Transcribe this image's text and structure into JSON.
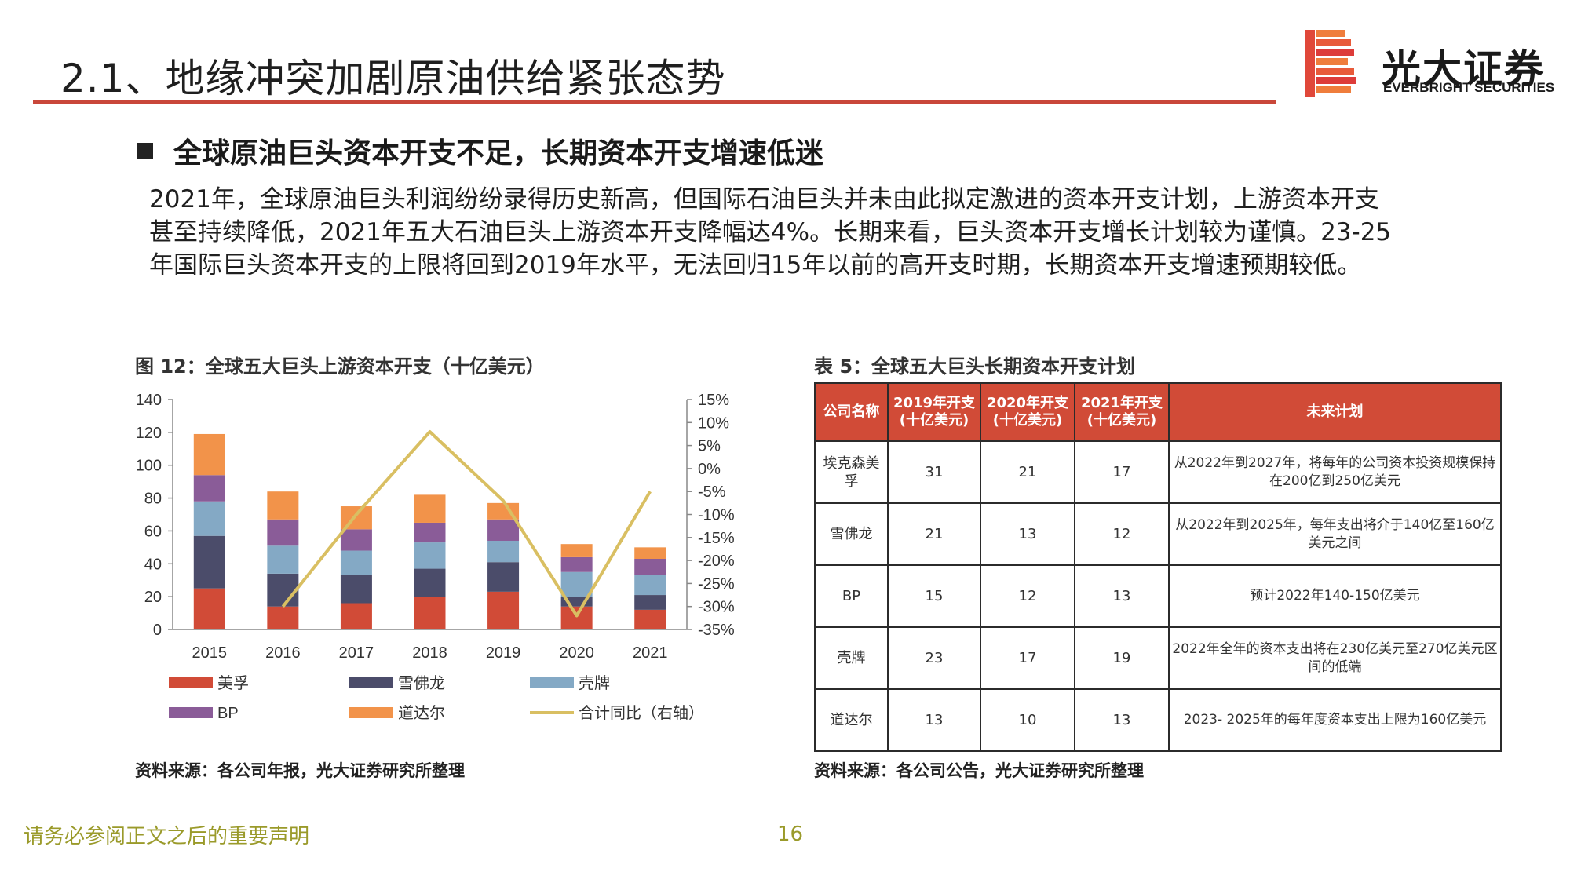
{
  "header": {
    "title": "2.1、地缘冲突加剧原油供给紧张态势",
    "logo_cn": "光大证券",
    "logo_en": "EVERBRIGHT SECURITIES"
  },
  "bullet": "全球原油巨头资本开支不足，长期资本开支增速低迷",
  "paragraph_lines": [
    "2021年，全球原油巨头利润纷纷录得历史新高，但国际石油巨头并未由此拟定激进的资本开支计划，上游资本开支",
    "甚至持续降低，2021年五大石油巨头上游资本开支降幅达4%。长期来看，巨头资本开支增长计划较为谨慎。23-25",
    "年国际巨头资本开支的上限将回到2019年水平，无法回归15年以前的高开支时期，长期资本开支增速预期较低。"
  ],
  "figure": {
    "title": "图 12：全球五大巨头上游资本开支（十亿美元）",
    "source": "资料来源：各公司年报，光大证券研究所整理"
  },
  "chart_data": {
    "type": "bar",
    "stacked": true,
    "categories": [
      "2015",
      "2016",
      "2017",
      "2018",
      "2019",
      "2020",
      "2021"
    ],
    "series": [
      {
        "name": "美孚",
        "color": "#d14b37",
        "values": [
          25,
          14,
          16,
          20,
          23,
          14,
          12
        ]
      },
      {
        "name": "雪佛龙",
        "color": "#4b4c6a",
        "values": [
          32,
          20,
          17,
          17,
          18,
          6,
          9
        ]
      },
      {
        "name": "壳牌",
        "color": "#84a9c5",
        "values": [
          21,
          17,
          15,
          16,
          13,
          15,
          12
        ]
      },
      {
        "name": "BP",
        "color": "#8a5c98",
        "values": [
          16,
          16,
          13,
          12,
          13,
          9,
          10
        ]
      },
      {
        "name": "道达尔",
        "color": "#f2934a",
        "values": [
          25,
          17,
          14,
          17,
          10,
          8,
          7
        ]
      }
    ],
    "line_series": {
      "name": "合计同比（右轴）",
      "color": "#d9bf62",
      "axis": "right",
      "values": [
        null,
        -30,
        -10,
        8,
        -7,
        -32,
        -5
      ]
    },
    "ylim": [
      0,
      140
    ],
    "yticks": [
      "0",
      "20",
      "40",
      "60",
      "80",
      "100",
      "120",
      "140"
    ],
    "y2lim": [
      -35,
      15
    ],
    "y2ticks": [
      "-35%",
      "-30%",
      "-25%",
      "-20%",
      "-15%",
      "-10%",
      "-5%",
      "0%",
      "5%",
      "10%",
      "15%"
    ],
    "legend_position": "bottom",
    "grid": false
  },
  "table": {
    "title": "表 5：全球五大巨头长期资本开支计划",
    "source": "资料来源：各公司公告，光大证券研究所整理",
    "headers": {
      "company": "公司名称",
      "y2019": "2019年开支 (十亿美元)",
      "y2020": "2020年开支 (十亿美元)",
      "y2021": "2021年开支 (十亿美元)",
      "plan": "未来计划"
    },
    "rows": [
      {
        "company": "埃克森美孚",
        "y2019": "31",
        "y2020": "21",
        "y2021": "17",
        "plan": "从2022年到2027年，将每年的公司资本投资规模保持在200亿到250亿美元"
      },
      {
        "company": "雪佛龙",
        "y2019": "21",
        "y2020": "13",
        "y2021": "12",
        "plan": "从2022年到2025年，每年支出将介于140亿至160亿美元之间"
      },
      {
        "company": "BP",
        "y2019": "15",
        "y2020": "12",
        "y2021": "13",
        "plan": "预计2022年140-150亿美元"
      },
      {
        "company": "壳牌",
        "y2019": "23",
        "y2020": "17",
        "y2021": "19",
        "plan": "2022年全年的资本支出将在230亿美元至270亿美元区间的低端"
      },
      {
        "company": "道达尔",
        "y2019": "13",
        "y2020": "10",
        "y2021": "13",
        "plan": "2023- 2025年的每年度资本支出上限为160亿美元"
      }
    ]
  },
  "footer": {
    "disclaimer": "请务必参阅正文之后的重要声明",
    "page": "16"
  }
}
